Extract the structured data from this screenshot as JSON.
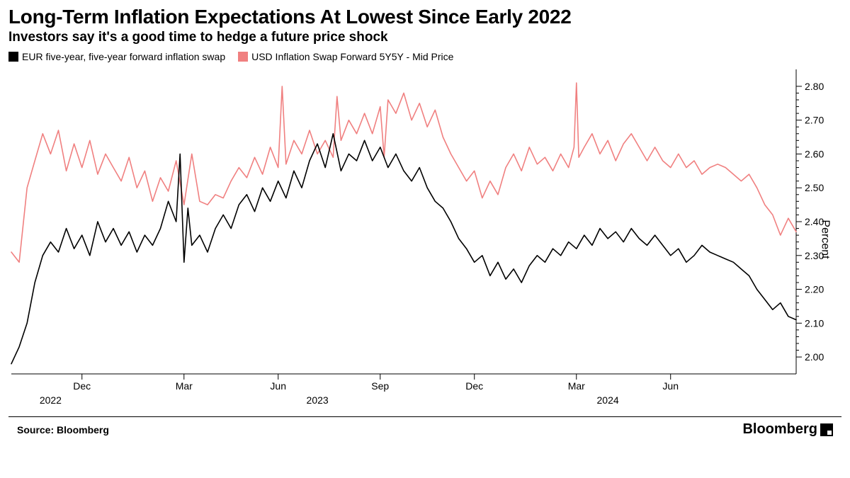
{
  "title": "Long-Term Inflation Expectations At Lowest Since Early 2022",
  "subtitle": "Investors say it's a good time to hedge a future price shock",
  "source": "Source: Bloomberg",
  "brand": "Bloomberg",
  "ylabel": "Percent",
  "legend": {
    "eur": {
      "label": "EUR five-year, five-year forward inflation swap",
      "color": "#000000"
    },
    "usd": {
      "label": "USD Inflation Swap Forward 5Y5Y - Mid Price",
      "color": "#f08080"
    }
  },
  "chart": {
    "type": "line",
    "background_color": "#ffffff",
    "line_width": 1.6,
    "y_axis": {
      "min": 1.95,
      "max": 2.85,
      "ticks": [
        2.0,
        2.1,
        2.2,
        2.3,
        2.4,
        2.5,
        2.6,
        2.7,
        2.8
      ],
      "tick_format": "2dp",
      "side": "right",
      "minor_tick_count_between": 4
    },
    "x_axis": {
      "domain_t": [
        0,
        100
      ],
      "month_ticks": [
        {
          "t": 9,
          "label": "Dec"
        },
        {
          "t": 22,
          "label": "Mar"
        },
        {
          "t": 34,
          "label": "Jun"
        },
        {
          "t": 47,
          "label": "Sep"
        },
        {
          "t": 59,
          "label": "Dec"
        },
        {
          "t": 72,
          "label": "Mar"
        },
        {
          "t": 84,
          "label": "Jun"
        }
      ],
      "year_ticks": [
        {
          "t": 5,
          "label": "2022"
        },
        {
          "t": 39,
          "label": "2023"
        },
        {
          "t": 76,
          "label": "2024"
        }
      ]
    },
    "series": {
      "usd": {
        "color": "#f08080",
        "points": [
          {
            "t": 0,
            "v": 2.31
          },
          {
            "t": 1,
            "v": 2.28
          },
          {
            "t": 2,
            "v": 2.5
          },
          {
            "t": 3,
            "v": 2.58
          },
          {
            "t": 4,
            "v": 2.66
          },
          {
            "t": 5,
            "v": 2.6
          },
          {
            "t": 6,
            "v": 2.67
          },
          {
            "t": 7,
            "v": 2.55
          },
          {
            "t": 8,
            "v": 2.63
          },
          {
            "t": 9,
            "v": 2.56
          },
          {
            "t": 10,
            "v": 2.64
          },
          {
            "t": 11,
            "v": 2.54
          },
          {
            "t": 12,
            "v": 2.6
          },
          {
            "t": 13,
            "v": 2.56
          },
          {
            "t": 14,
            "v": 2.52
          },
          {
            "t": 15,
            "v": 2.59
          },
          {
            "t": 16,
            "v": 2.5
          },
          {
            "t": 17,
            "v": 2.55
          },
          {
            "t": 18,
            "v": 2.46
          },
          {
            "t": 19,
            "v": 2.53
          },
          {
            "t": 20,
            "v": 2.49
          },
          {
            "t": 21,
            "v": 2.58
          },
          {
            "t": 22,
            "v": 2.45
          },
          {
            "t": 23,
            "v": 2.6
          },
          {
            "t": 24,
            "v": 2.46
          },
          {
            "t": 25,
            "v": 2.45
          },
          {
            "t": 26,
            "v": 2.48
          },
          {
            "t": 27,
            "v": 2.47
          },
          {
            "t": 28,
            "v": 2.52
          },
          {
            "t": 29,
            "v": 2.56
          },
          {
            "t": 30,
            "v": 2.53
          },
          {
            "t": 31,
            "v": 2.59
          },
          {
            "t": 32,
            "v": 2.54
          },
          {
            "t": 33,
            "v": 2.62
          },
          {
            "t": 34,
            "v": 2.56
          },
          {
            "t": 34.5,
            "v": 2.8
          },
          {
            "t": 35,
            "v": 2.57
          },
          {
            "t": 36,
            "v": 2.64
          },
          {
            "t": 37,
            "v": 2.6
          },
          {
            "t": 38,
            "v": 2.67
          },
          {
            "t": 39,
            "v": 2.6
          },
          {
            "t": 40,
            "v": 2.64
          },
          {
            "t": 41,
            "v": 2.59
          },
          {
            "t": 41.5,
            "v": 2.77
          },
          {
            "t": 42,
            "v": 2.64
          },
          {
            "t": 43,
            "v": 2.7
          },
          {
            "t": 44,
            "v": 2.66
          },
          {
            "t": 45,
            "v": 2.72
          },
          {
            "t": 46,
            "v": 2.66
          },
          {
            "t": 47,
            "v": 2.74
          },
          {
            "t": 47.5,
            "v": 2.59
          },
          {
            "t": 48,
            "v": 2.76
          },
          {
            "t": 49,
            "v": 2.72
          },
          {
            "t": 50,
            "v": 2.78
          },
          {
            "t": 51,
            "v": 2.7
          },
          {
            "t": 52,
            "v": 2.75
          },
          {
            "t": 53,
            "v": 2.68
          },
          {
            "t": 54,
            "v": 2.73
          },
          {
            "t": 55,
            "v": 2.65
          },
          {
            "t": 56,
            "v": 2.6
          },
          {
            "t": 57,
            "v": 2.56
          },
          {
            "t": 58,
            "v": 2.52
          },
          {
            "t": 59,
            "v": 2.55
          },
          {
            "t": 60,
            "v": 2.47
          },
          {
            "t": 61,
            "v": 2.52
          },
          {
            "t": 62,
            "v": 2.48
          },
          {
            "t": 63,
            "v": 2.56
          },
          {
            "t": 64,
            "v": 2.6
          },
          {
            "t": 65,
            "v": 2.55
          },
          {
            "t": 66,
            "v": 2.62
          },
          {
            "t": 67,
            "v": 2.57
          },
          {
            "t": 68,
            "v": 2.59
          },
          {
            "t": 69,
            "v": 2.55
          },
          {
            "t": 70,
            "v": 2.6
          },
          {
            "t": 71,
            "v": 2.56
          },
          {
            "t": 71.7,
            "v": 2.62
          },
          {
            "t": 72,
            "v": 2.81
          },
          {
            "t": 72.3,
            "v": 2.59
          },
          {
            "t": 73,
            "v": 2.62
          },
          {
            "t": 74,
            "v": 2.66
          },
          {
            "t": 75,
            "v": 2.6
          },
          {
            "t": 76,
            "v": 2.64
          },
          {
            "t": 77,
            "v": 2.58
          },
          {
            "t": 78,
            "v": 2.63
          },
          {
            "t": 79,
            "v": 2.66
          },
          {
            "t": 80,
            "v": 2.62
          },
          {
            "t": 81,
            "v": 2.58
          },
          {
            "t": 82,
            "v": 2.62
          },
          {
            "t": 83,
            "v": 2.58
          },
          {
            "t": 84,
            "v": 2.56
          },
          {
            "t": 85,
            "v": 2.6
          },
          {
            "t": 86,
            "v": 2.56
          },
          {
            "t": 87,
            "v": 2.58
          },
          {
            "t": 88,
            "v": 2.54
          },
          {
            "t": 89,
            "v": 2.56
          },
          {
            "t": 90,
            "v": 2.57
          },
          {
            "t": 91,
            "v": 2.56
          },
          {
            "t": 92,
            "v": 2.54
          },
          {
            "t": 93,
            "v": 2.52
          },
          {
            "t": 94,
            "v": 2.54
          },
          {
            "t": 95,
            "v": 2.5
          },
          {
            "t": 96,
            "v": 2.45
          },
          {
            "t": 97,
            "v": 2.42
          },
          {
            "t": 98,
            "v": 2.36
          },
          {
            "t": 99,
            "v": 2.41
          },
          {
            "t": 100,
            "v": 2.37
          }
        ]
      },
      "eur": {
        "color": "#000000",
        "points": [
          {
            "t": 0,
            "v": 1.98
          },
          {
            "t": 1,
            "v": 2.03
          },
          {
            "t": 2,
            "v": 2.1
          },
          {
            "t": 3,
            "v": 2.22
          },
          {
            "t": 4,
            "v": 2.3
          },
          {
            "t": 5,
            "v": 2.34
          },
          {
            "t": 6,
            "v": 2.31
          },
          {
            "t": 7,
            "v": 2.38
          },
          {
            "t": 8,
            "v": 2.32
          },
          {
            "t": 9,
            "v": 2.36
          },
          {
            "t": 10,
            "v": 2.3
          },
          {
            "t": 11,
            "v": 2.4
          },
          {
            "t": 12,
            "v": 2.34
          },
          {
            "t": 13,
            "v": 2.38
          },
          {
            "t": 14,
            "v": 2.33
          },
          {
            "t": 15,
            "v": 2.37
          },
          {
            "t": 16,
            "v": 2.31
          },
          {
            "t": 17,
            "v": 2.36
          },
          {
            "t": 18,
            "v": 2.33
          },
          {
            "t": 19,
            "v": 2.38
          },
          {
            "t": 20,
            "v": 2.46
          },
          {
            "t": 21,
            "v": 2.4
          },
          {
            "t": 21.5,
            "v": 2.6
          },
          {
            "t": 22,
            "v": 2.28
          },
          {
            "t": 22.5,
            "v": 2.44
          },
          {
            "t": 23,
            "v": 2.33
          },
          {
            "t": 24,
            "v": 2.36
          },
          {
            "t": 25,
            "v": 2.31
          },
          {
            "t": 26,
            "v": 2.38
          },
          {
            "t": 27,
            "v": 2.42
          },
          {
            "t": 28,
            "v": 2.38
          },
          {
            "t": 29,
            "v": 2.45
          },
          {
            "t": 30,
            "v": 2.48
          },
          {
            "t": 31,
            "v": 2.43
          },
          {
            "t": 32,
            "v": 2.5
          },
          {
            "t": 33,
            "v": 2.46
          },
          {
            "t": 34,
            "v": 2.52
          },
          {
            "t": 35,
            "v": 2.47
          },
          {
            "t": 36,
            "v": 2.55
          },
          {
            "t": 37,
            "v": 2.5
          },
          {
            "t": 38,
            "v": 2.58
          },
          {
            "t": 39,
            "v": 2.63
          },
          {
            "t": 40,
            "v": 2.56
          },
          {
            "t": 41,
            "v": 2.66
          },
          {
            "t": 42,
            "v": 2.55
          },
          {
            "t": 43,
            "v": 2.6
          },
          {
            "t": 44,
            "v": 2.58
          },
          {
            "t": 45,
            "v": 2.64
          },
          {
            "t": 46,
            "v": 2.58
          },
          {
            "t": 47,
            "v": 2.62
          },
          {
            "t": 48,
            "v": 2.56
          },
          {
            "t": 49,
            "v": 2.6
          },
          {
            "t": 50,
            "v": 2.55
          },
          {
            "t": 51,
            "v": 2.52
          },
          {
            "t": 52,
            "v": 2.56
          },
          {
            "t": 53,
            "v": 2.5
          },
          {
            "t": 54,
            "v": 2.46
          },
          {
            "t": 55,
            "v": 2.44
          },
          {
            "t": 56,
            "v": 2.4
          },
          {
            "t": 57,
            "v": 2.35
          },
          {
            "t": 58,
            "v": 2.32
          },
          {
            "t": 59,
            "v": 2.28
          },
          {
            "t": 60,
            "v": 2.3
          },
          {
            "t": 61,
            "v": 2.24
          },
          {
            "t": 62,
            "v": 2.28
          },
          {
            "t": 63,
            "v": 2.23
          },
          {
            "t": 64,
            "v": 2.26
          },
          {
            "t": 65,
            "v": 2.22
          },
          {
            "t": 66,
            "v": 2.27
          },
          {
            "t": 67,
            "v": 2.3
          },
          {
            "t": 68,
            "v": 2.28
          },
          {
            "t": 69,
            "v": 2.32
          },
          {
            "t": 70,
            "v": 2.3
          },
          {
            "t": 71,
            "v": 2.34
          },
          {
            "t": 72,
            "v": 2.32
          },
          {
            "t": 73,
            "v": 2.36
          },
          {
            "t": 74,
            "v": 2.33
          },
          {
            "t": 75,
            "v": 2.38
          },
          {
            "t": 76,
            "v": 2.35
          },
          {
            "t": 77,
            "v": 2.37
          },
          {
            "t": 78,
            "v": 2.34
          },
          {
            "t": 79,
            "v": 2.38
          },
          {
            "t": 80,
            "v": 2.35
          },
          {
            "t": 81,
            "v": 2.33
          },
          {
            "t": 82,
            "v": 2.36
          },
          {
            "t": 83,
            "v": 2.33
          },
          {
            "t": 84,
            "v": 2.3
          },
          {
            "t": 85,
            "v": 2.32
          },
          {
            "t": 86,
            "v": 2.28
          },
          {
            "t": 87,
            "v": 2.3
          },
          {
            "t": 88,
            "v": 2.33
          },
          {
            "t": 89,
            "v": 2.31
          },
          {
            "t": 90,
            "v": 2.3
          },
          {
            "t": 91,
            "v": 2.29
          },
          {
            "t": 92,
            "v": 2.28
          },
          {
            "t": 93,
            "v": 2.26
          },
          {
            "t": 94,
            "v": 2.24
          },
          {
            "t": 95,
            "v": 2.2
          },
          {
            "t": 96,
            "v": 2.17
          },
          {
            "t": 97,
            "v": 2.14
          },
          {
            "t": 98,
            "v": 2.16
          },
          {
            "t": 99,
            "v": 2.12
          },
          {
            "t": 100,
            "v": 2.11
          }
        ]
      }
    }
  }
}
